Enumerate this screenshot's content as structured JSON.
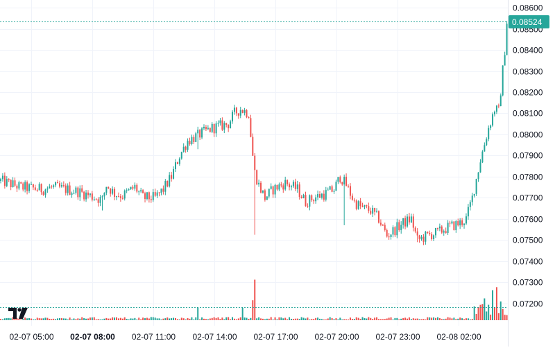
{
  "chart_data": {
    "type": "candlestick",
    "colors": {
      "up": "#26a69a",
      "down": "#ef5350",
      "grid": "#f0f3fa",
      "price_line": "#26a69a"
    },
    "y_axis": {
      "ylim": [
        0.0714,
        0.0862
      ],
      "ticks": [
        "0.07200",
        "0.07300",
        "0.07400",
        "0.07500",
        "0.07600",
        "0.07700",
        "0.07800",
        "0.07900",
        "0.08000",
        "0.08100",
        "0.08200",
        "0.08300",
        "0.08400",
        "0.08500",
        "0.08600"
      ]
    },
    "x_axis": {
      "ticks": [
        {
          "label": "02-07 05:00",
          "bold": false
        },
        {
          "label": "02-07 08:00",
          "bold": true
        },
        {
          "label": "02-07 11:00",
          "bold": false
        },
        {
          "label": "02-07 14:00",
          "bold": false
        },
        {
          "label": "02-07 17:00",
          "bold": false
        },
        {
          "label": "02-07 20:00",
          "bold": false
        },
        {
          "label": "02-07 23:00",
          "bold": false
        },
        {
          "label": "02-08 02:00",
          "bold": false
        }
      ]
    },
    "last_price": "0.08524",
    "anchors": [
      {
        "t": 0,
        "c": 0.0778
      },
      {
        "t": 10,
        "c": 0.0775
      },
      {
        "t": 20,
        "c": 0.0774
      },
      {
        "t": 26,
        "c": 0.0775
      },
      {
        "t": 32,
        "c": 0.0774
      },
      {
        "t": 38,
        "c": 0.0773
      },
      {
        "t": 44,
        "c": 0.0771
      },
      {
        "t": 50,
        "c": 0.0769
      },
      {
        "t": 52,
        "c": 0.0776
      },
      {
        "t": 56,
        "c": 0.0772
      },
      {
        "t": 60,
        "c": 0.0771
      },
      {
        "t": 66,
        "c": 0.0775
      },
      {
        "t": 70,
        "c": 0.077
      },
      {
        "t": 76,
        "c": 0.077
      },
      {
        "t": 80,
        "c": 0.0774
      },
      {
        "t": 84,
        "c": 0.078
      },
      {
        "t": 88,
        "c": 0.079
      },
      {
        "t": 92,
        "c": 0.0797
      },
      {
        "t": 96,
        "c": 0.0799
      },
      {
        "t": 100,
        "c": 0.0801
      },
      {
        "t": 104,
        "c": 0.0803
      },
      {
        "t": 108,
        "c": 0.0804
      },
      {
        "t": 112,
        "c": 0.0805
      },
      {
        "t": 115,
        "c": 0.081
      },
      {
        "t": 118,
        "c": 0.0812
      },
      {
        "t": 122,
        "c": 0.081
      },
      {
        "t": 124,
        "c": 0.079
      },
      {
        "t": 125,
        "c": 0.0782
      },
      {
        "t": 127,
        "c": 0.0776
      },
      {
        "t": 130,
        "c": 0.077
      },
      {
        "t": 134,
        "c": 0.0774
      },
      {
        "t": 140,
        "c": 0.0777
      },
      {
        "t": 146,
        "c": 0.0774
      },
      {
        "t": 150,
        "c": 0.0768
      },
      {
        "t": 154,
        "c": 0.077
      },
      {
        "t": 160,
        "c": 0.0772
      },
      {
        "t": 164,
        "c": 0.0774
      },
      {
        "t": 167,
        "c": 0.078
      },
      {
        "t": 170,
        "c": 0.0776
      },
      {
        "t": 174,
        "c": 0.0768
      },
      {
        "t": 178,
        "c": 0.0765
      },
      {
        "t": 182,
        "c": 0.0764
      },
      {
        "t": 186,
        "c": 0.076
      },
      {
        "t": 190,
        "c": 0.0752
      },
      {
        "t": 194,
        "c": 0.0755
      },
      {
        "t": 198,
        "c": 0.0758
      },
      {
        "t": 202,
        "c": 0.076
      },
      {
        "t": 205,
        "c": 0.075
      },
      {
        "t": 210,
        "c": 0.0752
      },
      {
        "t": 216,
        "c": 0.0754
      },
      {
        "t": 220,
        "c": 0.0756
      },
      {
        "t": 226,
        "c": 0.0758
      },
      {
        "t": 229,
        "c": 0.076
      },
      {
        "t": 232,
        "c": 0.077
      },
      {
        "t": 236,
        "c": 0.0788
      },
      {
        "t": 240,
        "c": 0.0803
      },
      {
        "t": 243,
        "c": 0.0812
      },
      {
        "t": 245,
        "c": 0.0811
      },
      {
        "t": 248,
        "c": 0.084
      },
      {
        "t": 249,
        "c": 0.0852
      }
    ],
    "spikes": [
      {
        "t": 50,
        "low": 0.0764
      },
      {
        "t": 97,
        "low": 0.0793
      },
      {
        "t": 125,
        "low": 0.07525
      },
      {
        "t": 169,
        "low": 0.0757
      },
      {
        "t": 205,
        "low": 0.0749
      }
    ],
    "volume_spikes": [
      {
        "t": 97,
        "h": 0.2
      },
      {
        "t": 119,
        "h": 0.2
      },
      {
        "t": 124,
        "h": 0.32
      },
      {
        "t": 125,
        "h": 0.65
      },
      {
        "t": 233,
        "h": 0.22
      },
      {
        "t": 238,
        "h": 0.35
      },
      {
        "t": 242,
        "h": 0.48
      },
      {
        "t": 244,
        "h": 0.53
      },
      {
        "t": 246,
        "h": 0.3
      }
    ]
  }
}
